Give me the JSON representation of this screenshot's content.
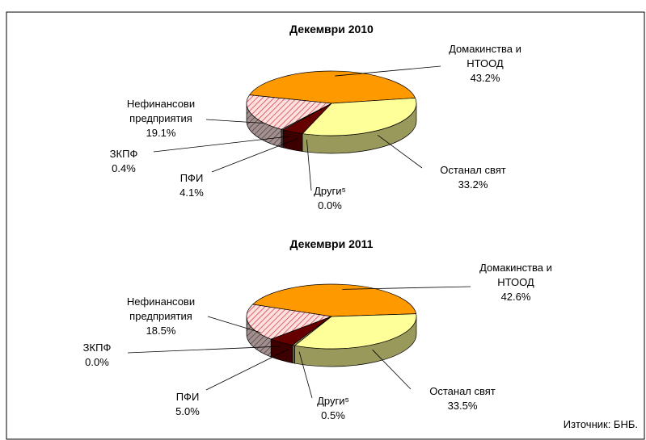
{
  "chart_data": [
    {
      "type": "pie3d",
      "title": "Декември 2010",
      "categories": [
        "Домакинства и\nНТООД",
        "Останал свят",
        "Други⁵",
        "ПФИ",
        "ЗКПФ",
        "Нефинансови\nпредприятия"
      ],
      "values": [
        43.2,
        33.2,
        0.0,
        4.1,
        0.4,
        19.1
      ],
      "value_labels": [
        "43.2%",
        "33.2%",
        "0.0%",
        "4.1%",
        "0.4%",
        "19.1%"
      ],
      "colors": [
        "#FF9900",
        "#FFFF99",
        "#999966",
        "#660000",
        "#808080",
        "#FFCCCC"
      ],
      "patterns": [
        null,
        null,
        null,
        null,
        null,
        "hatch"
      ]
    },
    {
      "type": "pie3d",
      "title": "Декември 2011",
      "categories": [
        "Домакинства и\nНТООД",
        "Останал свят",
        "Други⁵",
        "ПФИ",
        "ЗКПФ",
        "Нефинансови\nпредприятия"
      ],
      "values": [
        42.6,
        33.5,
        0.5,
        5.0,
        0.0,
        18.5
      ],
      "value_labels": [
        "42.6%",
        "33.5%",
        "0.5%",
        "5.0%",
        "0.0%",
        "18.5%"
      ],
      "colors": [
        "#FF9900",
        "#FFFF99",
        "#999966",
        "#660000",
        "#808080",
        "#FFCCCC"
      ],
      "patterns": [
        null,
        null,
        null,
        null,
        null,
        "hatch"
      ]
    }
  ],
  "source": "Източник: БНБ."
}
